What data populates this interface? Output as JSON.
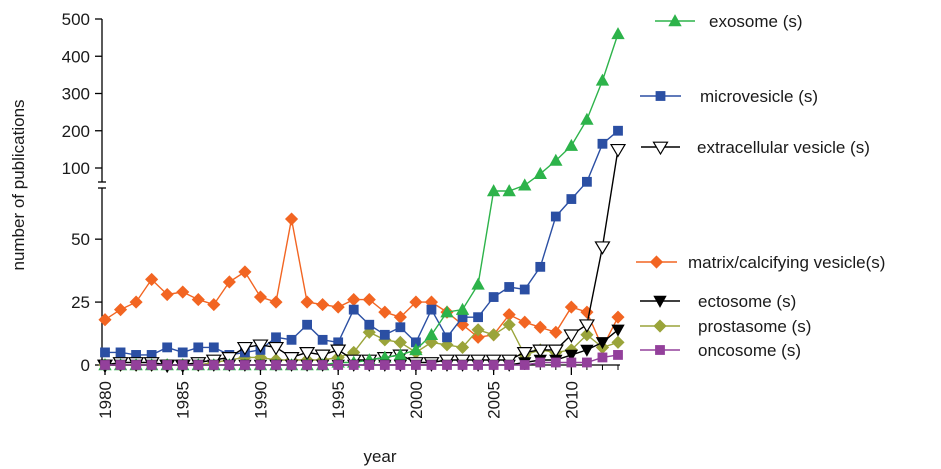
{
  "chart_data": {
    "type": "line",
    "xlabel": "year",
    "ylabel": "number of publications",
    "x": [
      1980,
      1981,
      1982,
      1983,
      1984,
      1985,
      1986,
      1987,
      1988,
      1989,
      1990,
      1991,
      1992,
      1993,
      1994,
      1995,
      1996,
      1997,
      1998,
      1999,
      2000,
      2001,
      2002,
      2003,
      2004,
      2005,
      2006,
      2007,
      2008,
      2009,
      2010,
      2011,
      2012,
      2013
    ],
    "x_ticks": [
      "1980",
      "1985",
      "1990",
      "1995",
      "2000",
      "2005",
      "2010"
    ],
    "y_ticks": [
      "0",
      "25",
      "50",
      "100",
      "200",
      "300",
      "400",
      "500"
    ],
    "y_axis_broken": true,
    "lower_ylim": [
      0,
      60
    ],
    "upper_ylim": [
      100,
      500
    ],
    "legend_position": "right",
    "series": [
      {
        "name": "exosome (s)",
        "color": "#2db34a",
        "marker": "triangle-up",
        "values": [
          0,
          0,
          0,
          0,
          0,
          0,
          0,
          0,
          0,
          0,
          0,
          0,
          0,
          0,
          0,
          1,
          1,
          2,
          3,
          4,
          6,
          12,
          21,
          22,
          32,
          80,
          80,
          85,
          95,
          120,
          160,
          230,
          335,
          460
        ]
      },
      {
        "name": "microvesicle (s)",
        "color": "#2b4fa3",
        "marker": "square",
        "values": [
          5,
          5,
          4,
          4,
          7,
          5,
          7,
          7,
          4,
          5,
          6,
          11,
          10,
          16,
          10,
          9,
          22,
          16,
          12,
          15,
          9,
          22,
          11,
          19,
          19,
          27,
          31,
          30,
          39,
          59,
          73,
          88,
          165,
          200
        ]
      },
      {
        "name": "extracellular vesicle (s)",
        "color": "#000000",
        "marker": "triangle-down-open",
        "values": [
          0,
          1,
          1,
          1,
          0,
          0,
          1,
          2,
          3,
          7,
          8,
          7,
          3,
          5,
          4,
          6,
          2,
          2,
          3,
          4,
          1,
          1,
          2,
          2,
          2,
          2,
          2,
          5,
          6,
          6,
          12,
          16,
          47,
          150
        ]
      },
      {
        "name": "matrix/calcifying vesicle(s)",
        "color": "#f26522",
        "marker": "diamond",
        "values": [
          18,
          22,
          25,
          34,
          28,
          29,
          26,
          24,
          33,
          37,
          27,
          25,
          58,
          25,
          24,
          23,
          26,
          26,
          21,
          19,
          25,
          25,
          21,
          16,
          11,
          12,
          20,
          17,
          15,
          13,
          23,
          21,
          7,
          19
        ]
      },
      {
        "name": "ectosome (s)",
        "color": "#000000",
        "marker": "triangle-down",
        "values": [
          0,
          0,
          0,
          0,
          0,
          0,
          0,
          0,
          0,
          0,
          0,
          0,
          0,
          0,
          0,
          0,
          0,
          0,
          0,
          0,
          0,
          0,
          0,
          0,
          0,
          0,
          0,
          1,
          2,
          2,
          4,
          6,
          9,
          14
        ]
      },
      {
        "name": "prostasome (s)",
        "color": "#9aa43a",
        "marker": "diamond",
        "values": [
          0,
          0,
          0,
          0,
          0,
          0,
          0,
          1,
          2,
          3,
          3,
          2,
          2,
          2,
          2,
          3,
          5,
          13,
          10,
          9,
          5,
          9,
          8,
          7,
          14,
          12,
          16,
          4,
          6,
          5,
          6,
          12,
          7,
          9
        ]
      },
      {
        "name": "oncosome (s)",
        "color": "#93409b",
        "marker": "square",
        "values": [
          0,
          0,
          0,
          0,
          0,
          0,
          0,
          0,
          0,
          0,
          0,
          0,
          0,
          0,
          0,
          0,
          0,
          0,
          0,
          0,
          0,
          0,
          0,
          0,
          0,
          0,
          0,
          0,
          1,
          1,
          1,
          1,
          3,
          4
        ]
      }
    ]
  }
}
